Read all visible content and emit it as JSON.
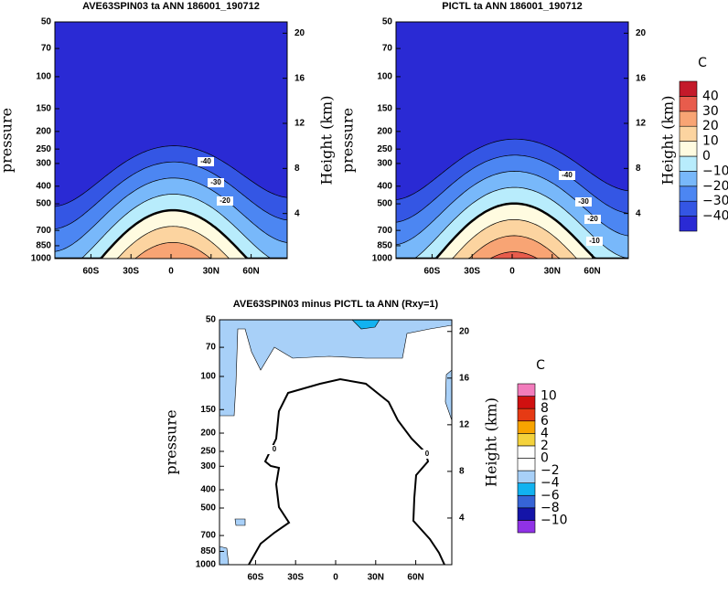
{
  "chart_data": [
    {
      "type": "contour",
      "title": "AVE63SPIN03 ta ANN 186001_190712",
      "ylabel": "pressure",
      "y2label": "Height (km)",
      "ylog": true,
      "ylim": [
        50,
        1000
      ],
      "yticks": [
        50,
        70,
        100,
        150,
        200,
        250,
        300,
        400,
        500,
        700,
        850,
        1000
      ],
      "y2lim": [
        0,
        21
      ],
      "y2ticks": [
        4,
        8,
        12,
        16,
        20
      ],
      "xlim": [
        -87,
        87
      ],
      "xticks": [
        {
          "value": -60,
          "label": "60S"
        },
        {
          "value": -30,
          "label": "30S"
        },
        0,
        {
          "value": 30,
          "label": "30N"
        },
        {
          "value": 60,
          "label": "60N"
        }
      ],
      "levels": [
        -40,
        -30,
        -20,
        -10,
        0,
        10,
        20,
        30,
        40
      ],
      "colors": [
        "#2a2ad4",
        "#3456e4",
        "#4c86f2",
        "#78b8fa",
        "#b8ecfc",
        "#fffbe0",
        "#fcd4a0",
        "#f8a474",
        "#e85c4c",
        "#c41a2a"
      ],
      "colorbar": false,
      "contour_labels": [
        -40,
        -30,
        -20
      ]
    },
    {
      "type": "contour",
      "title": "PICTL ta ANN 186001_190712",
      "ylabel": "pressure",
      "y2label": "Height (km)",
      "ylog": true,
      "ylim": [
        50,
        1000
      ],
      "yticks": [
        50,
        70,
        100,
        150,
        200,
        250,
        300,
        400,
        500,
        700,
        850,
        1000
      ],
      "y2lim": [
        0,
        21
      ],
      "y2ticks": [
        4,
        8,
        12,
        16,
        20
      ],
      "xlim": [
        -87,
        87
      ],
      "xticks": [
        {
          "value": -60,
          "label": "60S"
        },
        {
          "value": -30,
          "label": "30S"
        },
        0,
        {
          "value": 30,
          "label": "30N"
        },
        {
          "value": 60,
          "label": "60N"
        }
      ],
      "levels": [
        {
          "value": -40,
          "label": "−40"
        },
        {
          "value": -30,
          "label": "−30"
        },
        {
          "value": -20,
          "label": "−20"
        },
        {
          "value": -10,
          "label": "−10"
        },
        0,
        10,
        20,
        30,
        40
      ],
      "colors": [
        "#2a2ad4",
        "#3456e4",
        "#4c86f2",
        "#78b8fa",
        "#b8ecfc",
        "#fffbe0",
        "#fcd4a0",
        "#f8a474",
        "#e85c4c",
        "#c41a2a"
      ],
      "colorbar": true,
      "colorbar_label": "C",
      "contour_labels": [
        -40,
        -30,
        -20,
        -10
      ]
    },
    {
      "type": "difference",
      "title": "AVE63SPIN03 minus PICTL ta ANN (Rxy=1)",
      "ylabel": "pressure",
      "y2label": "Height (km)",
      "ylog": true,
      "ylim": [
        50,
        1000
      ],
      "yticks": [
        50,
        70,
        100,
        150,
        200,
        250,
        300,
        400,
        500,
        700,
        850,
        1000
      ],
      "y2lim": [
        0,
        21
      ],
      "y2ticks": [
        4,
        8,
        12,
        16,
        20
      ],
      "xlim": [
        -87,
        87
      ],
      "xticks": [
        {
          "value": -60,
          "label": "60S"
        },
        {
          "value": -30,
          "label": "30S"
        },
        0,
        {
          "value": 30,
          "label": "30N"
        },
        {
          "value": 60,
          "label": "60N"
        }
      ],
      "levels": [
        {
          "value": -10,
          "label": "−10"
        },
        {
          "value": -8,
          "label": "−8"
        },
        {
          "value": -6,
          "label": "−6"
        },
        {
          "value": -4,
          "label": "−4"
        },
        {
          "value": -2,
          "label": "−2"
        },
        0,
        2,
        4,
        6,
        8,
        10
      ],
      "colors": [
        "#9032e6",
        "#1414a8",
        "#3664d6",
        "#12b2f0",
        "#a8d0f8",
        "#ffffff",
        "#ffffff",
        "#f4d23c",
        "#f8a400",
        "#e63a14",
        "#d01010",
        "#f27cbc"
      ],
      "colorbar": true,
      "colorbar_label": "C",
      "contour_labels": [
        0,
        0
      ]
    }
  ]
}
